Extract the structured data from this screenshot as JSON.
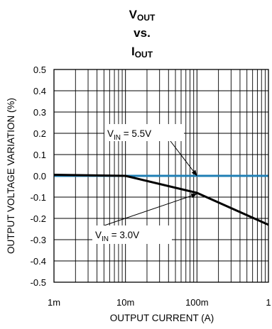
{
  "chart_data": {
    "type": "line",
    "title_line1_main": "V",
    "title_line1_sub": "OUT",
    "title_line2": "vs.",
    "title_line3_main": "I",
    "title_line3_sub": "OUT",
    "xlabel": "OUTPUT CURRENT (A)",
    "ylabel": "OUTPUT VOLTAGE VARIATION (%)",
    "x_scale": "log",
    "xlim": [
      0.001,
      1
    ],
    "ylim": [
      -0.5,
      0.5
    ],
    "grid": true,
    "x_tick_values": [
      0.001,
      0.01,
      0.1,
      1
    ],
    "x_tick_labels": [
      "1m",
      "10m",
      "100m",
      "1"
    ],
    "y_tick_values": [
      0.5,
      0.4,
      0.3,
      0.2,
      0.1,
      0.0,
      -0.1,
      -0.2,
      -0.3,
      -0.4,
      -0.5
    ],
    "y_tick_labels": [
      "0.5",
      "0.4",
      "0.3",
      "0.2",
      "0.1",
      "0.0",
      "-0.1",
      "-0.2",
      "-0.3",
      "-0.4",
      "-0.5"
    ],
    "series": [
      {
        "x": [
          0.001,
          0.01,
          0.1,
          1
        ],
        "y": [
          0.0,
          0.0,
          0.0,
          0.0
        ],
        "color": "#1f7fb5"
      },
      {
        "x": [
          0.001,
          0.01,
          0.1,
          1
        ],
        "y": [
          0.005,
          0.0,
          -0.08,
          -0.23
        ],
        "color": "#000000"
      }
    ],
    "annotations": [
      {
        "prefix": "V",
        "sub": "IN",
        "suffix": " = 5.5V",
        "target_x": 0.1,
        "target_y": 0.0
      },
      {
        "prefix": "V",
        "sub": "IN",
        "suffix": " = 3.0V",
        "target_x": 0.1,
        "target_y": -0.085
      }
    ]
  }
}
